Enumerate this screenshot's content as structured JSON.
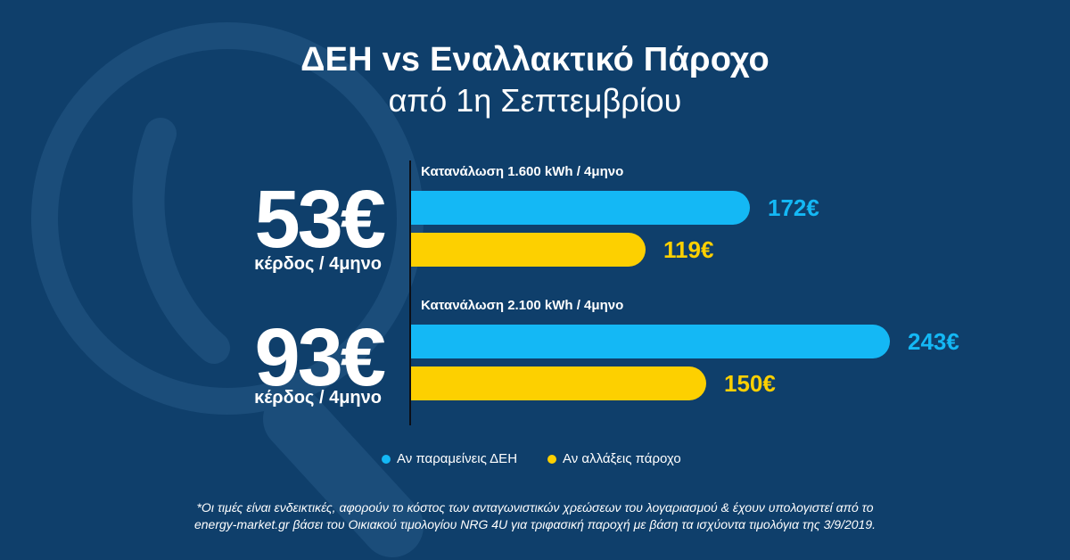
{
  "header": {
    "title": "ΔΕΗ vs Εναλλακτικό Πάροχο",
    "subtitle": "από 1η Σεπτεμβρίου"
  },
  "savings": [
    {
      "amount": "53€",
      "caption": "κέρδος / 4μηνο"
    },
    {
      "amount": "93€",
      "caption": "κέρδος / 4μηνο"
    }
  ],
  "colors": {
    "background": "#0f3f6b",
    "deh": "#14b8f5",
    "alt": "#fdd000"
  },
  "legend": {
    "deh": "Αν παραμείνεις ΔΕΗ",
    "alt": "Αν αλλάξεις πάροχο"
  },
  "footnote": {
    "line1": "*Οι τιμές είναι ενδεικτικές, αφορούν το κόστος των ανταγωνιστικών χρεώσεων του λογαριασμού & έχουν υπολογιστεί από το",
    "line2": "energy-market.gr βάσει του Οικιακού τιμολογίου NRG 4U για τριφασική παροχή με βάση τα ισχύοντα τιμολόγια της 3/9/2019."
  },
  "chart_data": {
    "type": "bar",
    "orientation": "horizontal",
    "categories": [
      "Κατανάλωση 1.600 kWh / 4μηνο",
      "Κατανάλωση 2.100 kWh / 4μηνο"
    ],
    "series": [
      {
        "name": "Αν παραμείνεις ΔΕΗ",
        "values": [
          172,
          243
        ],
        "labels": [
          "172€",
          "243€"
        ]
      },
      {
        "name": "Αν αλλάξεις πάροχο",
        "values": [
          119,
          150
        ],
        "labels": [
          "119€",
          "150€"
        ]
      }
    ],
    "legend_position": "bottom-center",
    "grid": false
  }
}
